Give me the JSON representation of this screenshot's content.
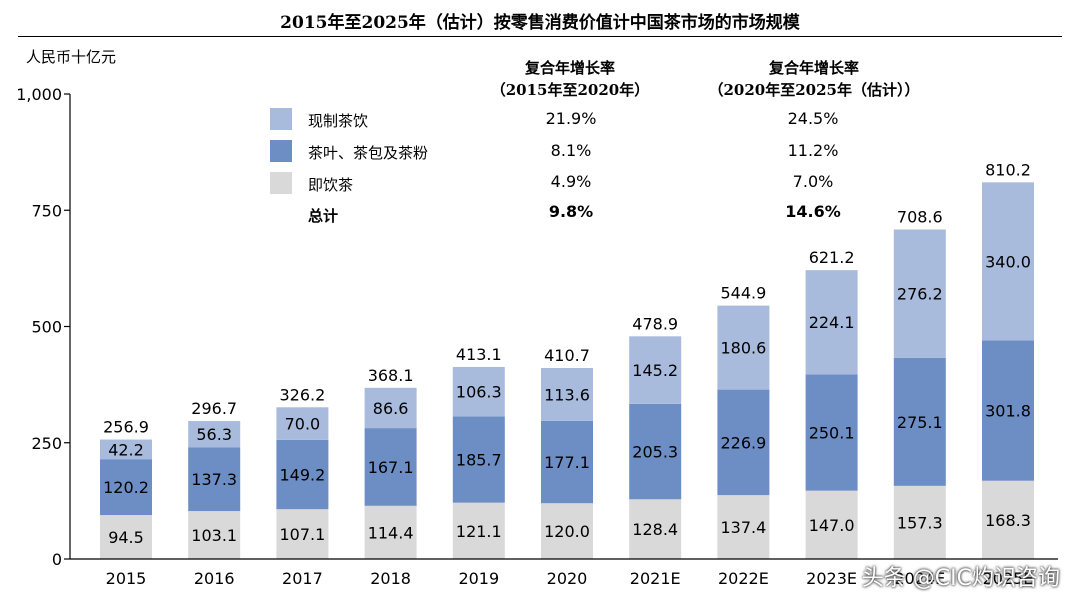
{
  "chart_data": {
    "type": "bar",
    "stacked": true,
    "title": "2015年至2025年（估计）按零售消费价值计中国茶市场的市场规模",
    "ylabel": "人民币十亿元",
    "ylim": [
      0,
      1000
    ],
    "yticks": [
      "0",
      "250",
      "500",
      "750",
      "1,000"
    ],
    "categories": [
      "2015",
      "2016",
      "2017",
      "2018",
      "2019",
      "2020",
      "2021E",
      "2022E",
      "2023E",
      "2024E",
      "2025E"
    ],
    "series": [
      {
        "name": "即饮茶",
        "color": "#d9d9d9",
        "values": [
          94.5,
          103.1,
          107.1,
          114.4,
          121.1,
          120.0,
          128.4,
          137.4,
          147.0,
          157.3,
          168.3
        ]
      },
      {
        "name": "茶叶、茶包及茶粉",
        "color": "#6d8ec4",
        "values": [
          120.2,
          137.3,
          149.2,
          167.1,
          185.7,
          177.1,
          205.3,
          226.9,
          250.1,
          275.1,
          301.8
        ]
      },
      {
        "name": "现制茶饮",
        "color": "#a8bbdd",
        "values": [
          42.2,
          56.3,
          70.0,
          86.6,
          106.3,
          113.6,
          145.2,
          180.6,
          224.1,
          276.2,
          340.0
        ]
      }
    ],
    "totals": [
      256.9,
      296.7,
      326.2,
      368.1,
      413.1,
      410.7,
      478.9,
      544.9,
      621.2,
      708.6,
      810.2
    ],
    "cagr": {
      "header1": [
        "复合年增长率",
        "（2015年至2020年）"
      ],
      "header2": [
        "复合年增长率",
        "（2020年至2025年（估计））"
      ],
      "rows": [
        {
          "label": "现制茶饮",
          "color": "#a8bbdd",
          "v1": "21.9%",
          "v2": "24.5%"
        },
        {
          "label": "茶叶、茶包及茶粉",
          "color": "#6d8ec4",
          "v1": "8.1%",
          "v2": "11.2%"
        },
        {
          "label": "即饮茶",
          "color": "#d9d9d9",
          "v1": "4.9%",
          "v2": "7.0%"
        },
        {
          "label": "总计",
          "color": "",
          "v1": "9.8%",
          "v2": "14.6%"
        }
      ]
    }
  },
  "watermark_text": "头条 @CIC灼识咨询"
}
